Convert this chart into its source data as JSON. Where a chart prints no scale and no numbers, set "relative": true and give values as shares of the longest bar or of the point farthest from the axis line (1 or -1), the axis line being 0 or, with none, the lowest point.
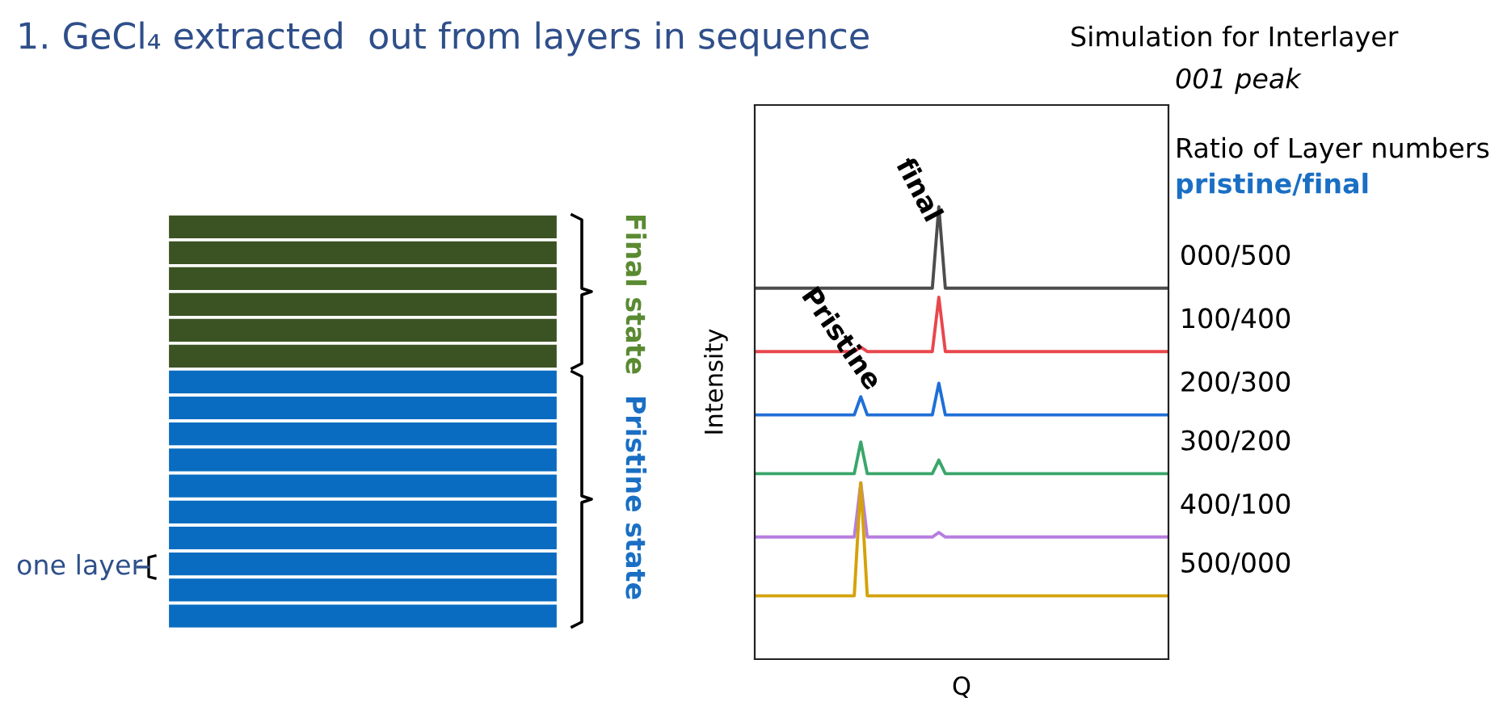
{
  "chart_data": {
    "type": "line",
    "relative": true,
    "title": "1. GeCl₄ extracted  out from layers in sequence",
    "subtitle": "Simulation for Interlayer\n001 peak",
    "xlabel": "Q",
    "ylabel": "Intensity",
    "categories": [
      null,
      null,
      null,
      null,
      null,
      null,
      null,
      null,
      null,
      null,
      null,
      null,
      null,
      null,
      null,
      null,
      null,
      null,
      null,
      null,
      null,
      null,
      null,
      null,
      null,
      null,
      null,
      null,
      null,
      null,
      null,
      null,
      null,
      null,
      null,
      null,
      null,
      null,
      null,
      null,
      null,
      null,
      null,
      null,
      null,
      null,
      null,
      null,
      null,
      null,
      null,
      null,
      null,
      null,
      null,
      null,
      null,
      null,
      null,
      null,
      null,
      null,
      null,
      null
    ],
    "series": [
      {
        "name": "000/500",
        "color": "#4d4d4d",
        "values": [
          0.82,
          0.82,
          0.82,
          0.82,
          0.82,
          0.82,
          0.82,
          0.82,
          0.82,
          0.82,
          0.82,
          0.82,
          0.82,
          0.82,
          0.82,
          0.82,
          0.82,
          0.82,
          0.82,
          0.82,
          0.82,
          0.82,
          0.82,
          0.82,
          0.82,
          0.82,
          0.82,
          0.82,
          1.0,
          0.82,
          0.82,
          0.82,
          0.82,
          0.82,
          0.82,
          0.82,
          0.82,
          0.82,
          0.82,
          0.82,
          0.82,
          0.82,
          0.82,
          0.82,
          0.82,
          0.82,
          0.82,
          0.82,
          0.82,
          0.82,
          0.82,
          0.82,
          0.82,
          0.82,
          0.82,
          0.82,
          0.82,
          0.82,
          0.82,
          0.82,
          0.82,
          0.82,
          0.82,
          0.82
        ]
      },
      {
        "name": "100/400",
        "color": "#e8474c",
        "values": [
          0.68,
          0.68,
          0.68,
          0.68,
          0.68,
          0.68,
          0.68,
          0.68,
          0.68,
          0.68,
          0.68,
          0.68,
          0.68,
          0.68,
          0.68,
          0.68,
          0.69,
          0.68,
          0.68,
          0.68,
          0.68,
          0.68,
          0.68,
          0.68,
          0.68,
          0.68,
          0.68,
          0.68,
          0.8,
          0.68,
          0.68,
          0.68,
          0.68,
          0.68,
          0.68,
          0.68,
          0.68,
          0.68,
          0.68,
          0.68,
          0.68,
          0.68,
          0.68,
          0.68,
          0.68,
          0.68,
          0.68,
          0.68,
          0.68,
          0.68,
          0.68,
          0.68,
          0.68,
          0.68,
          0.68,
          0.68,
          0.68,
          0.68,
          0.68,
          0.68,
          0.68,
          0.68,
          0.68,
          0.68
        ]
      },
      {
        "name": "200/300",
        "color": "#1f6fd6",
        "values": [
          0.54,
          0.54,
          0.54,
          0.54,
          0.54,
          0.54,
          0.54,
          0.54,
          0.54,
          0.54,
          0.54,
          0.54,
          0.54,
          0.54,
          0.54,
          0.54,
          0.58,
          0.54,
          0.54,
          0.54,
          0.54,
          0.54,
          0.54,
          0.54,
          0.54,
          0.54,
          0.54,
          0.54,
          0.61,
          0.54,
          0.54,
          0.54,
          0.54,
          0.54,
          0.54,
          0.54,
          0.54,
          0.54,
          0.54,
          0.54,
          0.54,
          0.54,
          0.54,
          0.54,
          0.54,
          0.54,
          0.54,
          0.54,
          0.54,
          0.54,
          0.54,
          0.54,
          0.54,
          0.54,
          0.54,
          0.54,
          0.54,
          0.54,
          0.54,
          0.54,
          0.54,
          0.54,
          0.54,
          0.54
        ]
      },
      {
        "name": "300/200",
        "color": "#3aa66a",
        "values": [
          0.41,
          0.41,
          0.41,
          0.41,
          0.41,
          0.41,
          0.41,
          0.41,
          0.41,
          0.41,
          0.41,
          0.41,
          0.41,
          0.41,
          0.41,
          0.41,
          0.48,
          0.41,
          0.41,
          0.41,
          0.41,
          0.41,
          0.41,
          0.41,
          0.41,
          0.41,
          0.41,
          0.41,
          0.44,
          0.41,
          0.41,
          0.41,
          0.41,
          0.41,
          0.41,
          0.41,
          0.41,
          0.41,
          0.41,
          0.41,
          0.41,
          0.41,
          0.41,
          0.41,
          0.41,
          0.41,
          0.41,
          0.41,
          0.41,
          0.41,
          0.41,
          0.41,
          0.41,
          0.41,
          0.41,
          0.41,
          0.41,
          0.41,
          0.41,
          0.41,
          0.41,
          0.41,
          0.41,
          0.41
        ]
      },
      {
        "name": "400/100",
        "color": "#b77ee0",
        "values": [
          0.27,
          0.27,
          0.27,
          0.27,
          0.27,
          0.27,
          0.27,
          0.27,
          0.27,
          0.27,
          0.27,
          0.27,
          0.27,
          0.27,
          0.27,
          0.27,
          0.39,
          0.27,
          0.27,
          0.27,
          0.27,
          0.27,
          0.27,
          0.27,
          0.27,
          0.27,
          0.27,
          0.27,
          0.28,
          0.27,
          0.27,
          0.27,
          0.27,
          0.27,
          0.27,
          0.27,
          0.27,
          0.27,
          0.27,
          0.27,
          0.27,
          0.27,
          0.27,
          0.27,
          0.27,
          0.27,
          0.27,
          0.27,
          0.27,
          0.27,
          0.27,
          0.27,
          0.27,
          0.27,
          0.27,
          0.27,
          0.27,
          0.27,
          0.27,
          0.27,
          0.27,
          0.27,
          0.27,
          0.27
        ]
      },
      {
        "name": "500/000",
        "color": "#d4a20a",
        "values": [
          0.14,
          0.14,
          0.14,
          0.14,
          0.14,
          0.14,
          0.14,
          0.14,
          0.14,
          0.14,
          0.14,
          0.14,
          0.14,
          0.14,
          0.14,
          0.14,
          0.39,
          0.14,
          0.14,
          0.14,
          0.14,
          0.14,
          0.14,
          0.14,
          0.14,
          0.14,
          0.14,
          0.14,
          0.14,
          0.14,
          0.14,
          0.14,
          0.14,
          0.14,
          0.14,
          0.14,
          0.14,
          0.14,
          0.14,
          0.14,
          0.14,
          0.14,
          0.14,
          0.14,
          0.14,
          0.14,
          0.14,
          0.14,
          0.14,
          0.14,
          0.14,
          0.14,
          0.14,
          0.14,
          0.14,
          0.14,
          0.14,
          0.14,
          0.14,
          0.14,
          0.14,
          0.14,
          0.14,
          0.14
        ]
      }
    ],
    "annotations": [
      "Final state",
      "Pristine state",
      "one layer",
      "Ratio of Layer numbers",
      "pristine/final",
      "final",
      "Pristine"
    ],
    "grid": false,
    "legend": false,
    "marker": "none",
    "line_style": "solid"
  }
}
